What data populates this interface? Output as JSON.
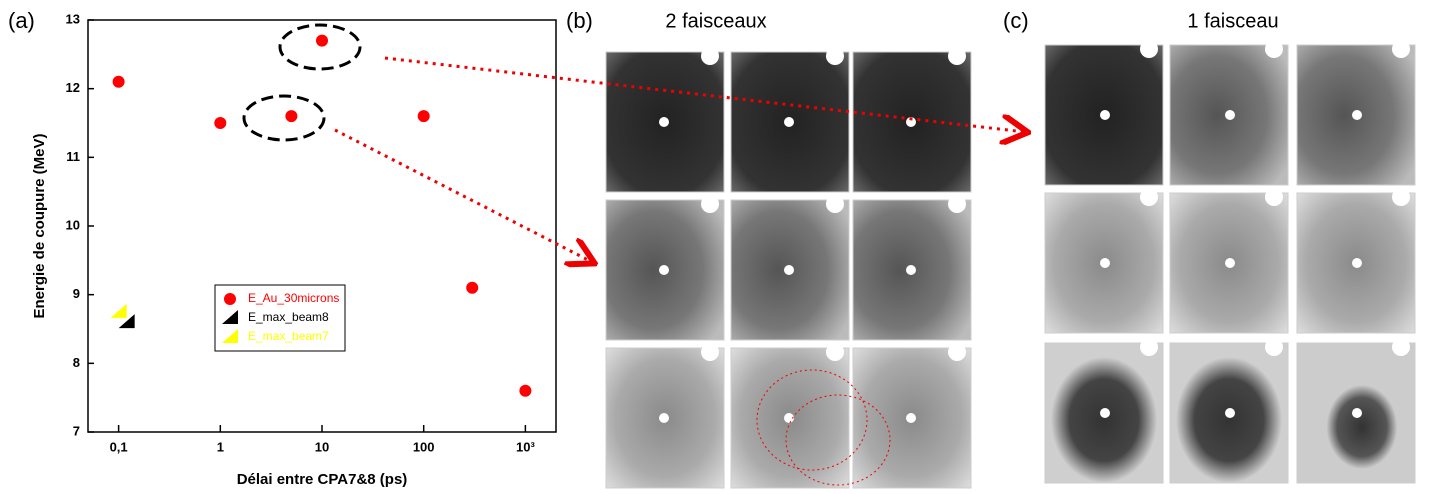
{
  "panel_labels": [
    "(a)",
    "(b)",
    "(c)"
  ],
  "panel_titles": [
    "2 faisceaux",
    "1 faisceau"
  ],
  "chart_data": {
    "type": "scatter",
    "x_label": "Délai entre CPA7&8 (ps)",
    "y_label": "Energie de coupure (MeV)",
    "log_x": true,
    "xlim": [
      0.05,
      2000
    ],
    "ylim": [
      7,
      13
    ],
    "xticks": [
      {
        "value": 0.1,
        "label": "0,1"
      },
      1,
      10,
      100,
      {
        "value": 1000,
        "label": "10³"
      }
    ],
    "yticks": [
      7,
      8,
      9,
      10,
      11,
      12,
      13
    ],
    "legend": "lower-center",
    "series": [
      {
        "name": "E_Au_30microns",
        "color": "#ff0000",
        "marker": "circle",
        "x": [
          0.1,
          1,
          5,
          10,
          100,
          300,
          1000
        ],
        "values": [
          12.1,
          11.5,
          11.6,
          12.7,
          11.6,
          9.1,
          7.6
        ]
      },
      {
        "name": "E_max_beam8",
        "color": "#000000",
        "marker": "triangle",
        "x": [
          0.12
        ],
        "values": [
          8.6
        ]
      },
      {
        "name": "E_max_beam7",
        "color": "#ffff00",
        "marker": "triangle",
        "x": [
          0.1
        ],
        "values": [
          8.75
        ]
      }
    ]
  }
}
